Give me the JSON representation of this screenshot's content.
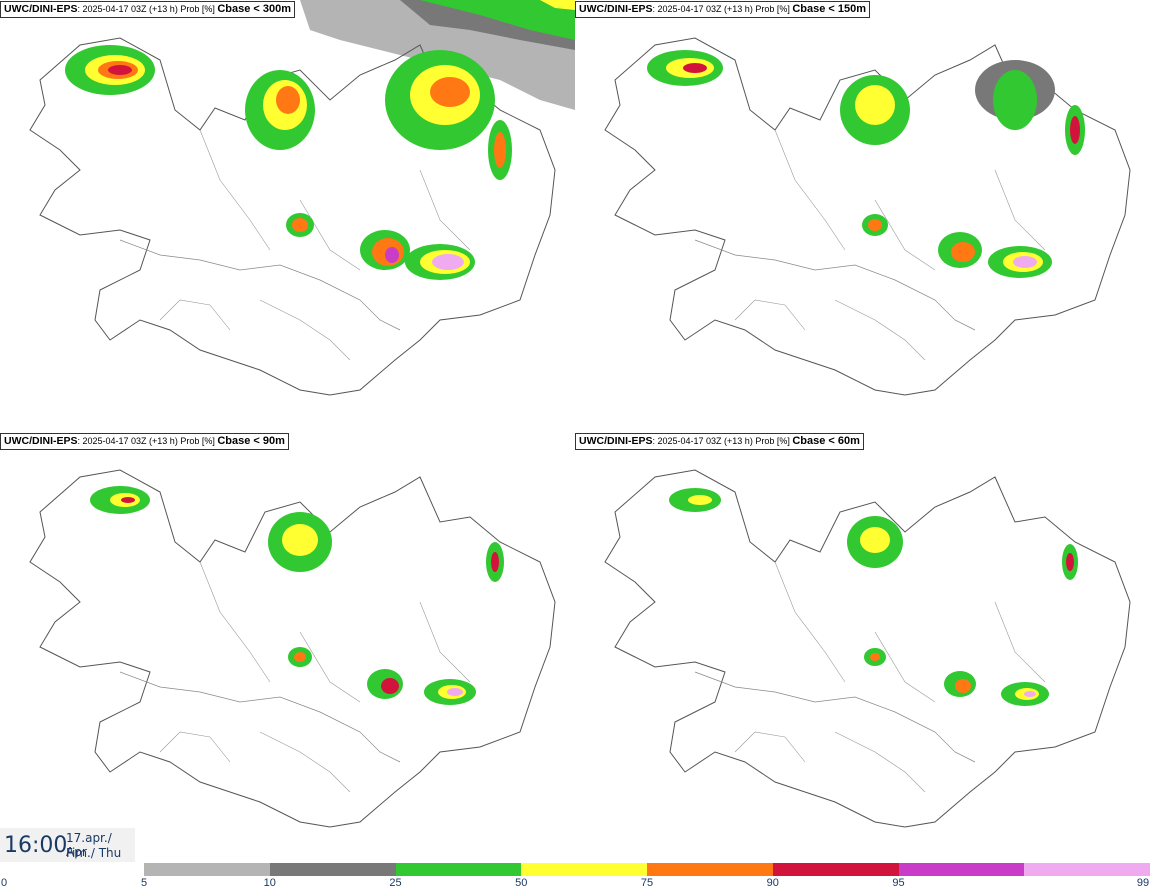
{
  "panels": [
    {
      "model": "UWC/DINI-EPS",
      "run": ": 2025-04-17 03Z (+13 h) Prob [%] ",
      "variable": "Cbase < 300m"
    },
    {
      "model": "UWC/DINI-EPS",
      "run": ": 2025-04-17 03Z (+13 h) Prob [%] ",
      "variable": "Cbase < 150m"
    },
    {
      "model": "UWC/DINI-EPS",
      "run": ": 2025-04-17 03Z (+13 h) Prob [%] ",
      "variable": "Cbase < 90m"
    },
    {
      "model": "UWC/DINI-EPS",
      "run": ": 2025-04-17 03Z (+13 h) Prob [%] ",
      "variable": "Cbase < 60m"
    }
  ],
  "valid_time": {
    "clock": "16:00",
    "date_line1": "17.apr./ Apr",
    "date_line2": "Fim./ Thu"
  },
  "colorbar": {
    "ticks": [
      "0",
      "5",
      "10",
      "25",
      "50",
      "75",
      "90",
      "95",
      "99"
    ],
    "colors": [
      "#b4b4b4",
      "#787878",
      "#32c832",
      "#ffff32",
      "#ff7814",
      "#d2143c",
      "#c83cc8",
      "#f0aaf0"
    ]
  }
}
